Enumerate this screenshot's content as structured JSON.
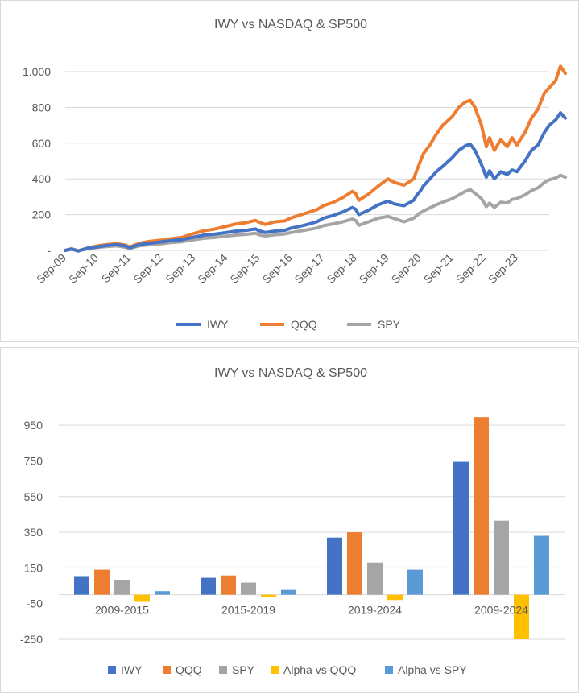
{
  "colors": {
    "IWY": "#4472C4",
    "QQQ": "#ED7D31",
    "SPY": "#A5A5A5",
    "Alpha vs QQQ": "#FFC000",
    "Alpha vs SPY": "#5B9BD5",
    "grid": "#d9d9d9",
    "text": "#595959"
  },
  "chart_data": [
    {
      "type": "line",
      "title": "IWY vs NASDAQ  & SP500",
      "xlabel": "",
      "ylabel": "",
      "x": [
        "Sep-09",
        "Sep-10",
        "Sep-11",
        "Sep-12",
        "Sep-13",
        "Sep-14",
        "Sep-15",
        "Sep-16",
        "Sep-17",
        "Sep-18",
        "Sep-19",
        "Sep-20",
        "Sep-21",
        "Sep-22",
        "Sep-23"
      ],
      "x_end": "Sep-24",
      "ylim": [
        0,
        1000
      ],
      "yticks": [
        0,
        200,
        400,
        600,
        800,
        1000
      ],
      "ytick_labels": [
        "-",
        "200",
        "400",
        "600",
        "800",
        "1.000"
      ],
      "legend_position": "bottom",
      "series": [
        {
          "name": "IWY",
          "points": [
            [
              0,
              0
            ],
            [
              0.2,
              8
            ],
            [
              0.4,
              -3
            ],
            [
              0.7,
              12
            ],
            [
              1,
              20
            ],
            [
              1.3,
              28
            ],
            [
              1.6,
              32
            ],
            [
              1.85,
              25
            ],
            [
              2,
              15
            ],
            [
              2.3,
              33
            ],
            [
              2.6,
              40
            ],
            [
              3,
              48
            ],
            [
              3.3,
              55
            ],
            [
              3.6,
              60
            ],
            [
              4,
              75
            ],
            [
              4.3,
              86
            ],
            [
              4.6,
              90
            ],
            [
              5,
              100
            ],
            [
              5.3,
              108
            ],
            [
              5.6,
              112
            ],
            [
              5.9,
              120
            ],
            [
              6,
              110
            ],
            [
              6.2,
              100
            ],
            [
              6.5,
              108
            ],
            [
              6.8,
              112
            ],
            [
              7,
              125
            ],
            [
              7.4,
              140
            ],
            [
              7.8,
              160
            ],
            [
              8,
              180
            ],
            [
              8.3,
              195
            ],
            [
              8.6,
              215
            ],
            [
              8.9,
              240
            ],
            [
              9,
              230
            ],
            [
              9.1,
              200
            ],
            [
              9.4,
              225
            ],
            [
              9.7,
              255
            ],
            [
              10,
              275
            ],
            [
              10.2,
              260
            ],
            [
              10.5,
              250
            ],
            [
              10.8,
              280
            ],
            [
              10.9,
              310
            ],
            [
              11,
              330
            ],
            [
              11.1,
              360
            ],
            [
              11.3,
              400
            ],
            [
              11.5,
              440
            ],
            [
              11.7,
              470
            ],
            [
              12,
              520
            ],
            [
              12.2,
              560
            ],
            [
              12.4,
              585
            ],
            [
              12.55,
              595
            ],
            [
              12.7,
              560
            ],
            [
              12.9,
              480
            ],
            [
              13.05,
              410
            ],
            [
              13.15,
              445
            ],
            [
              13.3,
              400
            ],
            [
              13.5,
              440
            ],
            [
              13.7,
              425
            ],
            [
              13.85,
              450
            ],
            [
              14,
              440
            ],
            [
              14.25,
              500
            ],
            [
              14.45,
              560
            ],
            [
              14.65,
              590
            ],
            [
              14.85,
              660
            ],
            [
              15,
              700
            ],
            [
              15.2,
              730
            ],
            [
              15.35,
              770
            ],
            [
              15.5,
              740
            ]
          ]
        },
        {
          "name": "QQQ",
          "points": [
            [
              0,
              0
            ],
            [
              0.2,
              9
            ],
            [
              0.4,
              -3
            ],
            [
              0.7,
              14
            ],
            [
              1,
              25
            ],
            [
              1.3,
              33
            ],
            [
              1.6,
              38
            ],
            [
              1.85,
              30
            ],
            [
              2,
              20
            ],
            [
              2.3,
              40
            ],
            [
              2.6,
              50
            ],
            [
              3,
              58
            ],
            [
              3.3,
              66
            ],
            [
              3.6,
              72
            ],
            [
              4,
              95
            ],
            [
              4.3,
              110
            ],
            [
              4.6,
              118
            ],
            [
              5,
              135
            ],
            [
              5.3,
              148
            ],
            [
              5.6,
              155
            ],
            [
              5.9,
              168
            ],
            [
              6,
              158
            ],
            [
              6.2,
              145
            ],
            [
              6.5,
              160
            ],
            [
              6.8,
              165
            ],
            [
              7,
              182
            ],
            [
              7.4,
              205
            ],
            [
              7.8,
              228
            ],
            [
              8,
              250
            ],
            [
              8.3,
              268
            ],
            [
              8.6,
              295
            ],
            [
              8.9,
              330
            ],
            [
              9,
              318
            ],
            [
              9.1,
              280
            ],
            [
              9.4,
              315
            ],
            [
              9.7,
              360
            ],
            [
              10,
              400
            ],
            [
              10.2,
              380
            ],
            [
              10.5,
              365
            ],
            [
              10.8,
              400
            ],
            [
              10.9,
              450
            ],
            [
              11,
              495
            ],
            [
              11.1,
              540
            ],
            [
              11.3,
              590
            ],
            [
              11.5,
              650
            ],
            [
              11.7,
              700
            ],
            [
              12,
              750
            ],
            [
              12.2,
              800
            ],
            [
              12.4,
              830
            ],
            [
              12.55,
              840
            ],
            [
              12.7,
              800
            ],
            [
              12.9,
              700
            ],
            [
              13.05,
              580
            ],
            [
              13.15,
              630
            ],
            [
              13.3,
              560
            ],
            [
              13.5,
              620
            ],
            [
              13.7,
              580
            ],
            [
              13.85,
              630
            ],
            [
              14,
              590
            ],
            [
              14.25,
              660
            ],
            [
              14.45,
              740
            ],
            [
              14.65,
              790
            ],
            [
              14.85,
              880
            ],
            [
              15,
              910
            ],
            [
              15.2,
              950
            ],
            [
              15.35,
              1030
            ],
            [
              15.5,
              990
            ]
          ]
        },
        {
          "name": "SPY",
          "points": [
            [
              0,
              0
            ],
            [
              0.2,
              7
            ],
            [
              0.4,
              -2
            ],
            [
              0.7,
              10
            ],
            [
              1,
              16
            ],
            [
              1.3,
              22
            ],
            [
              1.6,
              25
            ],
            [
              1.85,
              18
            ],
            [
              2,
              10
            ],
            [
              2.3,
              26
            ],
            [
              2.6,
              32
            ],
            [
              3,
              38
            ],
            [
              3.3,
              44
            ],
            [
              3.6,
              48
            ],
            [
              4,
              60
            ],
            [
              4.3,
              68
            ],
            [
              4.6,
              72
            ],
            [
              5,
              80
            ],
            [
              5.3,
              86
            ],
            [
              5.6,
              90
            ],
            [
              5.9,
              96
            ],
            [
              6,
              88
            ],
            [
              6.2,
              80
            ],
            [
              6.5,
              88
            ],
            [
              6.8,
              92
            ],
            [
              7,
              100
            ],
            [
              7.4,
              112
            ],
            [
              7.8,
              125
            ],
            [
              8,
              138
            ],
            [
              8.3,
              148
            ],
            [
              8.6,
              160
            ],
            [
              8.9,
              175
            ],
            [
              9,
              168
            ],
            [
              9.1,
              140
            ],
            [
              9.4,
              160
            ],
            [
              9.7,
              180
            ],
            [
              10,
              190
            ],
            [
              10.2,
              178
            ],
            [
              10.5,
              160
            ],
            [
              10.8,
              180
            ],
            [
              10.9,
              195
            ],
            [
              11,
              210
            ],
            [
              11.1,
              220
            ],
            [
              11.3,
              238
            ],
            [
              11.5,
              255
            ],
            [
              11.7,
              270
            ],
            [
              12,
              290
            ],
            [
              12.2,
              310
            ],
            [
              12.4,
              330
            ],
            [
              12.55,
              340
            ],
            [
              12.7,
              320
            ],
            [
              12.9,
              290
            ],
            [
              13.05,
              245
            ],
            [
              13.15,
              265
            ],
            [
              13.3,
              240
            ],
            [
              13.5,
              270
            ],
            [
              13.7,
              265
            ],
            [
              13.85,
              285
            ],
            [
              14,
              290
            ],
            [
              14.25,
              310
            ],
            [
              14.45,
              335
            ],
            [
              14.65,
              350
            ],
            [
              14.85,
              380
            ],
            [
              15,
              395
            ],
            [
              15.2,
              405
            ],
            [
              15.35,
              420
            ],
            [
              15.5,
              410
            ]
          ]
        }
      ]
    },
    {
      "type": "bar",
      "title": "IWY vs NASDAQ & SP500",
      "xlabel": "",
      "ylabel": "",
      "categories": [
        "2009-2015",
        "2015-2019",
        "2019-2024",
        "2009-2024"
      ],
      "ylim": [
        -250,
        1050
      ],
      "yticks": [
        -250,
        -50,
        150,
        350,
        550,
        750,
        950
      ],
      "legend_position": "bottom",
      "series": [
        {
          "name": "IWY",
          "values": [
            100,
            95,
            320,
            745
          ]
        },
        {
          "name": "QQQ",
          "values": [
            140,
            108,
            350,
            995
          ]
        },
        {
          "name": "SPY",
          "values": [
            80,
            68,
            180,
            415
          ]
        },
        {
          "name": "Alpha vs QQQ",
          "values": [
            -40,
            -13,
            -30,
            -250
          ]
        },
        {
          "name": "Alpha vs SPY",
          "values": [
            20,
            27,
            140,
            330
          ]
        }
      ]
    }
  ]
}
